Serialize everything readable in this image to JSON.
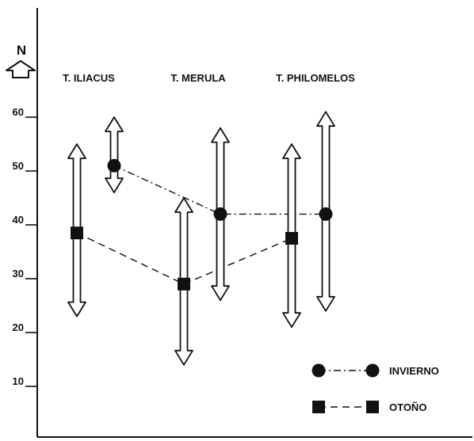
{
  "chart_data": {
    "type": "scatter",
    "ylabel": "N",
    "ylim": [
      0,
      70
    ],
    "yticks": [
      10,
      20,
      30,
      40,
      50,
      60
    ],
    "grid": false,
    "legend_position": "bottom-right",
    "groups": [
      "T. ILIACUS",
      "T. MERULA",
      "T. PHILOMELOS"
    ],
    "series": [
      {
        "name": "INVIERNO",
        "marker": "circle",
        "line": "dash-dot",
        "points": [
          {
            "group": "T. ILIACUS",
            "mean": 51,
            "range": [
              46,
              60
            ]
          },
          {
            "group": "T. MERULA",
            "mean": 42,
            "range": [
              26,
              58
            ]
          },
          {
            "group": "T. PHILOMELOS",
            "mean": 42,
            "range": [
              24,
              61
            ]
          }
        ]
      },
      {
        "name": "OTOÑO",
        "marker": "square",
        "line": "dashed",
        "points": [
          {
            "group": "T. ILIACUS",
            "mean": 38.5,
            "range": [
              23,
              55
            ]
          },
          {
            "group": "T. MERULA",
            "mean": 29,
            "range": [
              14,
              45
            ]
          },
          {
            "group": "T. PHILOMELOS",
            "mean": 37.5,
            "range": [
              21,
              55
            ]
          }
        ]
      }
    ]
  }
}
